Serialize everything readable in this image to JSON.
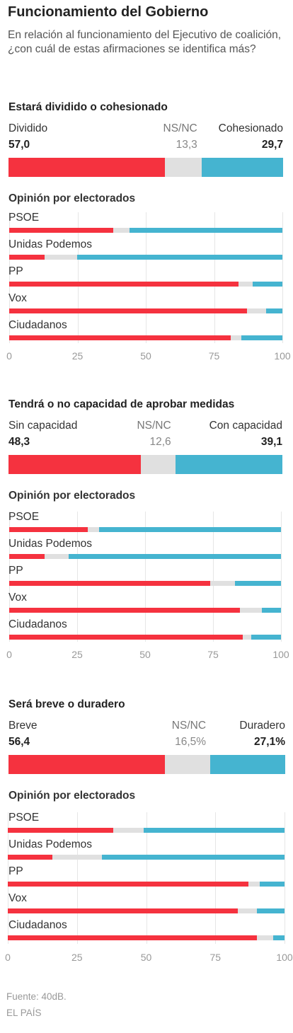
{
  "header": {
    "title": "Funcionamiento del Gobierno",
    "subtitle": "En relación al funcionamiento del Ejecutivo de coalición, ¿con cuál de estas afirmaciones se identifica más?"
  },
  "colors": {
    "left": "#f5323f",
    "middle": "#e0e0e0",
    "right": "#45b4d0"
  },
  "chart_data": [
    {
      "type": "bar",
      "title": "Estará dividido o cohesionado",
      "labels": {
        "left": "Dividido",
        "middle": "NS/NC",
        "right": "Cohesionado"
      },
      "totals_text": {
        "left": "57,0",
        "middle": "13,3",
        "right": "29,7"
      },
      "totals": [
        57.0,
        13.3,
        29.7
      ],
      "breakdown_title": "Opinión por electorados",
      "categories": [
        "PSOE",
        "Unidas Podemos",
        "PP",
        "Vox",
        "Ciudadanos"
      ],
      "series": [
        {
          "name": "Dividido",
          "values": [
            38,
            13,
            84,
            87,
            81
          ]
        },
        {
          "name": "NS/NC",
          "values": [
            6,
            12,
            5,
            7,
            4
          ]
        },
        {
          "name": "Cohesionado",
          "values": [
            56,
            75,
            11,
            6,
            15
          ]
        }
      ],
      "xlim": [
        0,
        100
      ],
      "ticks": [
        "0",
        "25",
        "50",
        "75",
        "100"
      ]
    },
    {
      "type": "bar",
      "title": "Tendrá o no capacidad de aprobar medidas",
      "labels": {
        "left": "Sin capacidad",
        "middle": "NS/NC",
        "right": "Con capacidad"
      },
      "totals_text": {
        "left": "48,3",
        "middle": "12,6",
        "right": "39,1"
      },
      "totals": [
        48.3,
        12.6,
        39.1
      ],
      "breakdown_title": "Opinión por electorados",
      "categories": [
        "PSOE",
        "Unidas Podemos",
        "PP",
        "Vox",
        "Ciudadanos"
      ],
      "series": [
        {
          "name": "Sin capacidad",
          "values": [
            29,
            13,
            74,
            85,
            86
          ]
        },
        {
          "name": "NS/NC",
          "values": [
            4,
            9,
            9,
            8,
            3
          ]
        },
        {
          "name": "Con capacidad",
          "values": [
            67,
            78,
            17,
            7,
            11
          ]
        }
      ],
      "xlim": [
        0,
        100
      ],
      "ticks": [
        "0",
        "25",
        "50",
        "75",
        "100"
      ]
    },
    {
      "type": "bar",
      "title": "Será breve o duradero",
      "labels": {
        "left": "Breve",
        "middle": "NS/NC",
        "right": "Duradero"
      },
      "totals_text": {
        "left": "56,4",
        "middle": "16,5%",
        "right": "27,1%"
      },
      "totals": [
        56.4,
        16.5,
        27.1
      ],
      "breakdown_title": "Opinión por electorados",
      "categories": [
        "PSOE",
        "Unidas Podemos",
        "PP",
        "Vox",
        "Ciudadanos"
      ],
      "series": [
        {
          "name": "Breve",
          "values": [
            38,
            16,
            87,
            83,
            90
          ]
        },
        {
          "name": "NS/NC",
          "values": [
            11,
            18,
            4,
            7,
            6
          ]
        },
        {
          "name": "Duradero",
          "values": [
            51,
            66,
            9,
            10,
            4
          ]
        }
      ],
      "xlim": [
        0,
        100
      ],
      "ticks": [
        "0",
        "25",
        "50",
        "75",
        "100"
      ]
    }
  ],
  "footer": {
    "source": "Fuente: 40dB.",
    "brand": "EL PAÍS"
  }
}
